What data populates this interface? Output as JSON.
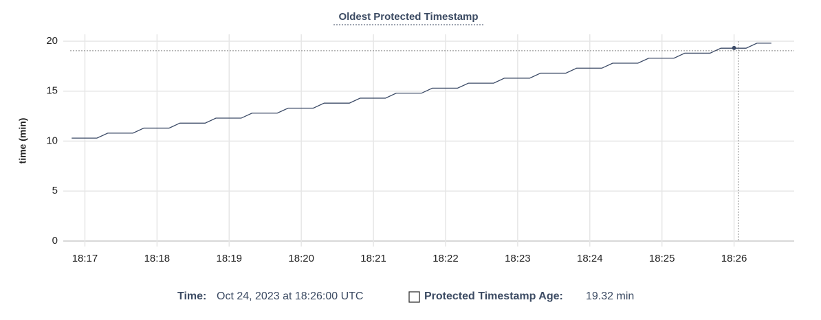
{
  "chart_data": {
    "type": "line",
    "title": "Oldest Protected Timestamp",
    "y_label": "time (min)",
    "x": [
      "18:16:49",
      "18:17:10",
      "18:17:19",
      "18:17:40",
      "18:17:49",
      "18:18:10",
      "18:18:19",
      "18:18:40",
      "18:18:49",
      "18:19:10",
      "18:19:19",
      "18:19:40",
      "18:19:49",
      "18:20:10",
      "18:20:19",
      "18:20:40",
      "18:20:49",
      "18:21:10",
      "18:21:19",
      "18:21:40",
      "18:21:49",
      "18:22:10",
      "18:22:19",
      "18:22:40",
      "18:22:49",
      "18:23:10",
      "18:23:19",
      "18:23:40",
      "18:23:49",
      "18:24:10",
      "18:24:19",
      "18:24:40",
      "18:24:49",
      "18:25:10",
      "18:25:19",
      "18:25:40",
      "18:25:49",
      "18:26:10",
      "18:26:19",
      "18:26:31"
    ],
    "series": [
      {
        "name": "Protected Timestamp Age",
        "color": "#3b4a66",
        "values": [
          10.3,
          10.3,
          10.8,
          10.8,
          11.3,
          11.3,
          11.8,
          11.8,
          12.3,
          12.3,
          12.8,
          12.8,
          13.3,
          13.3,
          13.8,
          13.8,
          14.3,
          14.3,
          14.8,
          14.8,
          15.3,
          15.3,
          15.8,
          15.8,
          16.3,
          16.3,
          16.8,
          16.8,
          17.3,
          17.3,
          17.8,
          17.8,
          18.3,
          18.3,
          18.8,
          18.8,
          19.3,
          19.3,
          19.8,
          19.8
        ]
      }
    ],
    "xlim": [
      "18:16:42",
      "18:26:50"
    ],
    "xticks": [
      "18:17",
      "18:18",
      "18:19",
      "18:20",
      "18:21",
      "18:22",
      "18:23",
      "18:24",
      "18:25",
      "18:26"
    ],
    "ylim": [
      0,
      20
    ],
    "yticks": [
      0,
      5,
      10,
      15,
      20
    ],
    "grid": true,
    "hover": {
      "time_label": "Time:",
      "time": "Oct 24, 2023 at 18:26:00 UTC",
      "series_label": "Protected Timestamp Age:",
      "value": 19.32,
      "value_label": "19.32 min"
    }
  }
}
